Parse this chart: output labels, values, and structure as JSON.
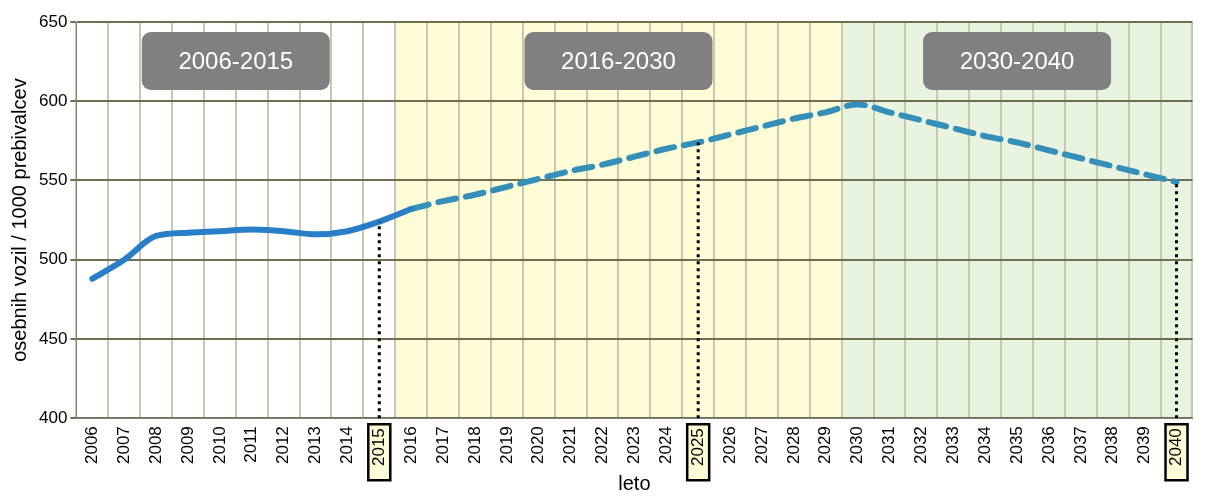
{
  "chart_data": {
    "type": "line",
    "xlabel": "leto",
    "ylabel": "osebnih vozil / 1000 prebivalcev",
    "categories": [
      "2006",
      "2007",
      "2008",
      "2009",
      "2010",
      "2011",
      "2012",
      "2013",
      "2014",
      "2015",
      "2016",
      "2017",
      "2018",
      "2019",
      "2020",
      "2021",
      "2022",
      "2023",
      "2024",
      "2025",
      "2026",
      "2027",
      "2028",
      "2029",
      "2030",
      "2031",
      "2032",
      "2033",
      "2034",
      "2035",
      "2036",
      "2037",
      "2038",
      "2039",
      "2040"
    ],
    "series": [
      {
        "color": "#2a7ec8",
        "line_style": "solid",
        "values": [
          488,
          500,
          515,
          517,
          518,
          519,
          518,
          516,
          518,
          524,
          532,
          null,
          null,
          null,
          null,
          null,
          null,
          null,
          null,
          null,
          null,
          null,
          null,
          null,
          null,
          null,
          null,
          null,
          null,
          null,
          null,
          null,
          null,
          null,
          null
        ]
      },
      {
        "color": "#3490b8",
        "line_style": "dashed",
        "values": [
          null,
          null,
          null,
          null,
          null,
          null,
          null,
          null,
          null,
          null,
          532,
          537,
          541,
          546,
          551,
          556,
          560,
          565,
          570,
          574,
          579,
          584,
          589,
          593,
          598,
          593,
          588,
          583,
          578,
          574,
          569,
          564,
          559,
          554,
          549
        ]
      }
    ],
    "annotations": [
      "2006-2015"
    ],
    "ylim": [
      400,
      650
    ],
    "yticks": [
      400,
      450,
      500,
      550,
      600,
      650
    ],
    "grid": true,
    "legend": false,
    "marker": "none",
    "bands": [
      {
        "axis": "x",
        "from": "2016",
        "to": "2029",
        "label": "2016-2030",
        "color": "#fefcd6"
      },
      {
        "axis": "x",
        "from": "2030",
        "to": "2040",
        "label": "2030-2040",
        "color": "#e8f4e0"
      }
    ],
    "ref_lines": [
      {
        "axis": "x",
        "value": "2015",
        "label": null,
        "line_style": "dotted",
        "color": "#000000"
      },
      {
        "axis": "x",
        "value": "2025",
        "label": null,
        "line_style": "dotted",
        "color": "#000000"
      },
      {
        "axis": "x",
        "value": "2040",
        "label": null,
        "line_style": "dotted",
        "color": "#000000"
      }
    ]
  }
}
